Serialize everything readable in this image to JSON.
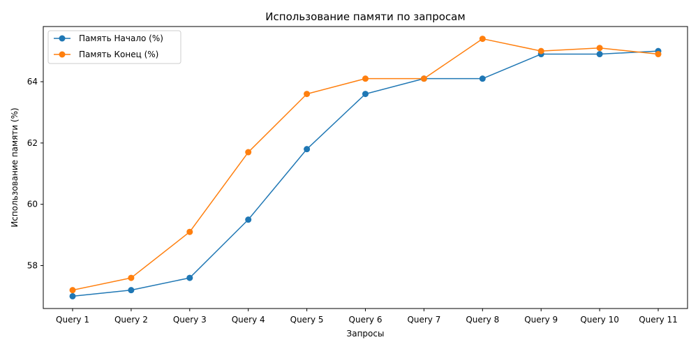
{
  "chart_data": {
    "type": "line",
    "title": "Использование памяти по запросам",
    "xlabel": "Запросы",
    "ylabel": "Использование памяти (%)",
    "categories": [
      "Query 1",
      "Query 2",
      "Query 3",
      "Query 4",
      "Query 5",
      "Query 6",
      "Query 7",
      "Query 8",
      "Query 9",
      "Query 10",
      "Query 11"
    ],
    "yticks": [
      58,
      60,
      62,
      64
    ],
    "ylim": [
      56.6,
      65.8
    ],
    "grid": false,
    "legend_position": "top-left",
    "series": [
      {
        "name": "Память Начало (%)",
        "color": "#1f77b4",
        "values": [
          57.0,
          57.2,
          57.6,
          59.5,
          61.8,
          63.6,
          64.1,
          64.1,
          64.9,
          64.9,
          65.0
        ]
      },
      {
        "name": "Память Конец (%)",
        "color": "#ff7f0e",
        "values": [
          57.2,
          57.6,
          59.1,
          61.7,
          63.6,
          64.1,
          64.1,
          65.4,
          65.0,
          65.1,
          64.9
        ]
      }
    ]
  }
}
